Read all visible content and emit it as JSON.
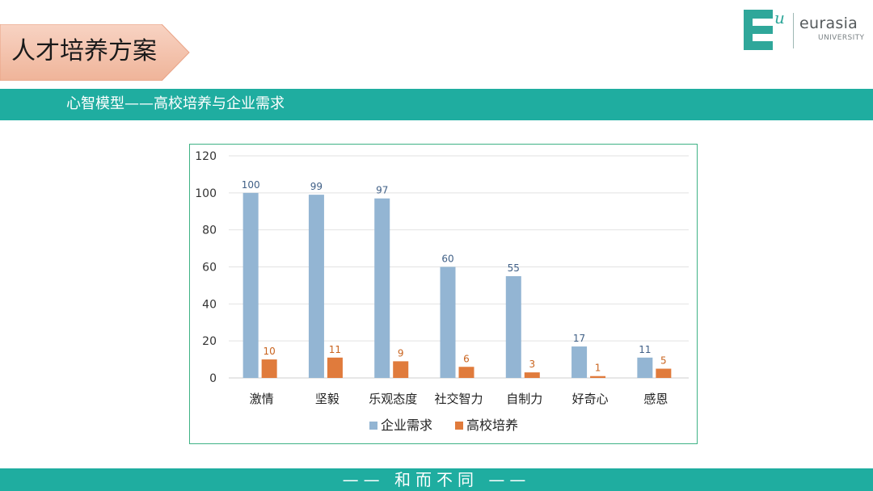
{
  "header": {
    "title": "人才培养方案"
  },
  "logo": {
    "mark_letter": "E",
    "mark_superscript": "u",
    "name": "eurasia",
    "subtitle": "UNIVERSITY"
  },
  "banner": {
    "text": "心智模型——高校培养与企业需求"
  },
  "footer": {
    "text": "—— 和而不同 ——"
  },
  "colors": {
    "teal": "#1fada0",
    "series_enterprise": "#93b5d3",
    "series_school": "#e07b3c"
  },
  "chart_data": {
    "type": "bar",
    "categories": [
      "激情",
      "坚毅",
      "乐观态度",
      "社交智力",
      "自制力",
      "好奇心",
      "感恩"
    ],
    "series": [
      {
        "name": "企业需求",
        "values": [
          100,
          99,
          97,
          60,
          55,
          17,
          11
        ],
        "color": "#93b5d3"
      },
      {
        "name": "高校培养",
        "values": [
          10,
          11,
          9,
          6,
          3,
          1,
          5
        ],
        "color": "#e07b3c"
      }
    ],
    "ylim": [
      0,
      120
    ],
    "yticks": [
      0,
      20,
      40,
      60,
      80,
      100,
      120
    ],
    "grid": true,
    "legend": "bottom",
    "data_labels": true
  }
}
